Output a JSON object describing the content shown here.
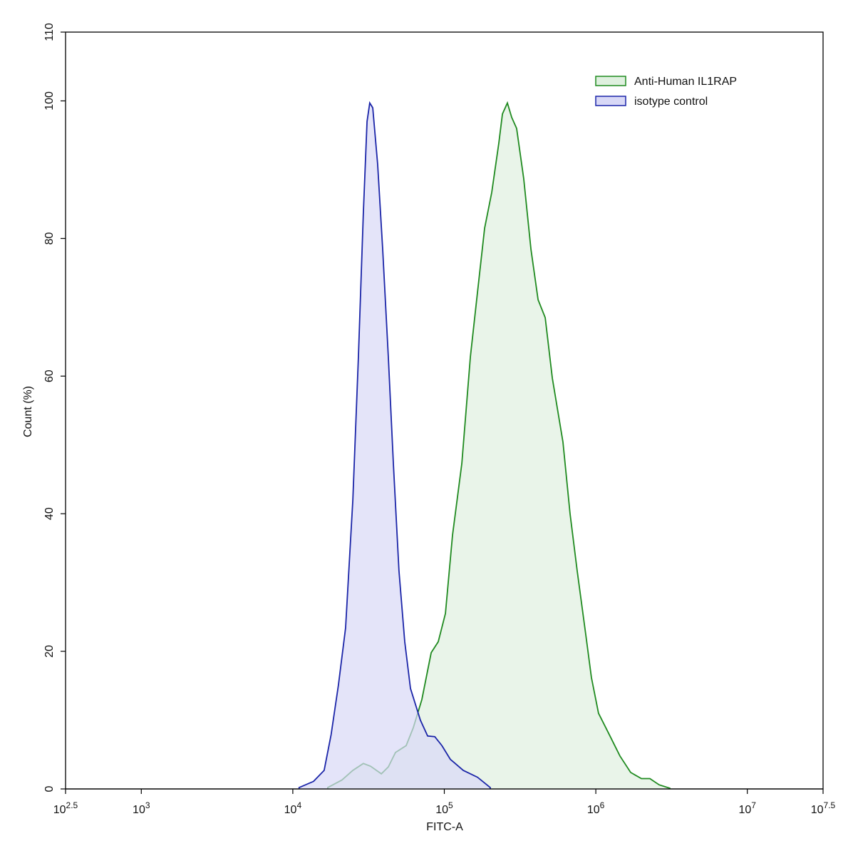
{
  "chart_data": {
    "type": "histogram-overlay",
    "x_label": "FITC-A",
    "y_label": "Count  (%)",
    "x_scale": "log",
    "legend": "top-right",
    "xlim": [
      316.2278,
      31622777
    ],
    "ylim": [
      0,
      110
    ],
    "xticks": [
      {
        "value": 316.2278,
        "label": "10^2.5"
      },
      {
        "value": 1000,
        "label": "10^3"
      },
      {
        "value": 10000,
        "label": "10^4"
      },
      {
        "value": 100000,
        "label": "10^5"
      },
      {
        "value": 1000000,
        "label": "10^6"
      },
      {
        "value": 10000000,
        "label": "10^7"
      },
      {
        "value": 31622777,
        "label": "10^7.5"
      }
    ],
    "yticks": [
      0,
      20,
      40,
      60,
      80,
      100,
      110
    ],
    "series": [
      {
        "name": "Anti-Human IL1RAP",
        "color": "#1f8a1f",
        "fill": "#dff0df",
        "x": [
          17000,
          21100,
          24900,
          29200,
          32600,
          38400,
          42700,
          47600,
          56000,
          62400,
          71100,
          81900,
          91200,
          101700,
          113300,
          130500,
          148600,
          165600,
          184500,
          205600,
          229100,
          241900,
          260800,
          278500,
          300100,
          334300,
          373300,
          415900,
          463400,
          516400,
          607000,
          676100,
          753400,
          858800,
          935200,
          1042000,
          1227000,
          1442000,
          1698000,
          2000000,
          2275000,
          2618000,
          3083000
        ],
        "values": [
          0.2,
          1.3,
          2.7,
          3.7,
          3.3,
          2.2,
          3.2,
          5.3,
          6.3,
          8.9,
          13,
          19.8,
          21.4,
          25.5,
          36.9,
          47.3,
          62.8,
          72.2,
          81.5,
          86.7,
          93.9,
          98.1,
          99.7,
          97.6,
          96,
          88.7,
          78.4,
          71.1,
          68.5,
          59.7,
          50.4,
          40,
          31.7,
          22.4,
          16.2,
          11,
          7.9,
          4.8,
          2.4,
          1.5,
          1.5,
          0.6,
          0.1
        ]
      },
      {
        "name": "isotype control",
        "color": "#1a24a8",
        "fill": "#d8d8f6",
        "x": [
          11000,
          13700,
          16100,
          17900,
          20000,
          22300,
          24900,
          27100,
          29200,
          30900,
          32200,
          33700,
          36300,
          39200,
          42700,
          46100,
          50200,
          54800,
          59800,
          69500,
          77600,
          86500,
          96400,
          109600,
          133300,
          165600,
          201000
        ],
        "values": [
          0.2,
          1.1,
          2.7,
          7.9,
          15.1,
          23.4,
          42,
          62.8,
          83.6,
          97,
          99.7,
          99,
          90.8,
          78.4,
          62.8,
          47.3,
          31.7,
          21.4,
          14.6,
          10,
          7.7,
          7.6,
          6.3,
          4.3,
          2.7,
          1.7,
          0.2
        ]
      }
    ]
  }
}
